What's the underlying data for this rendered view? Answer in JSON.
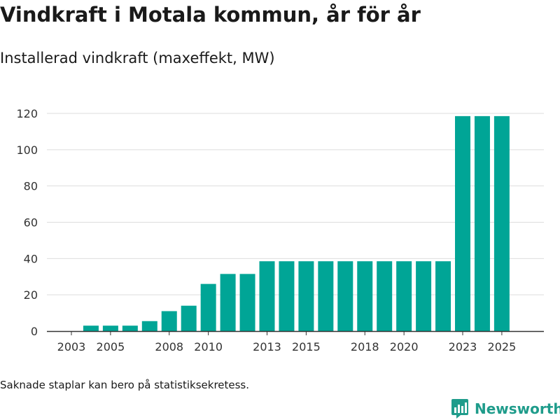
{
  "title": "Vindkraft i Motala kommun, år för år",
  "subtitle": "Installerad vindkraft (maxeffekt, MW)",
  "footnote": "Saknade staplar kan bero på statistiksekretess.",
  "brand": "Newsworthy",
  "colors": {
    "bar": "#00a596",
    "grid": "#dddddd",
    "axis": "#333333",
    "brand": "#1f9c8b"
  },
  "chart_data": {
    "type": "bar",
    "title": "Vindkraft i Motala kommun, år för år",
    "subtitle": "Installerad vindkraft (maxeffekt, MW)",
    "xlabel": "",
    "ylabel": "Installerad vindkraft (maxeffekt, MW)",
    "categories": [
      2003,
      2004,
      2005,
      2006,
      2007,
      2008,
      2009,
      2010,
      2011,
      2012,
      2013,
      2014,
      2015,
      2016,
      2017,
      2018,
      2019,
      2020,
      2021,
      2022,
      2023,
      2024,
      2025
    ],
    "values": [
      0,
      3,
      3,
      3,
      5.5,
      11,
      14,
      26,
      31.5,
      31.5,
      38.5,
      38.5,
      38.5,
      38.5,
      38.5,
      38.5,
      38.5,
      38.5,
      38.5,
      38.5,
      118.5,
      118.5,
      118.5
    ],
    "x_tick_labels": [
      "2003",
      "2005",
      "2008",
      "2010",
      "2013",
      "2015",
      "2018",
      "2020",
      "2023",
      "2025"
    ],
    "y_ticks": [
      0,
      20,
      40,
      60,
      80,
      100,
      120
    ],
    "ylim": [
      0,
      120
    ],
    "grid": true,
    "legend": false
  }
}
